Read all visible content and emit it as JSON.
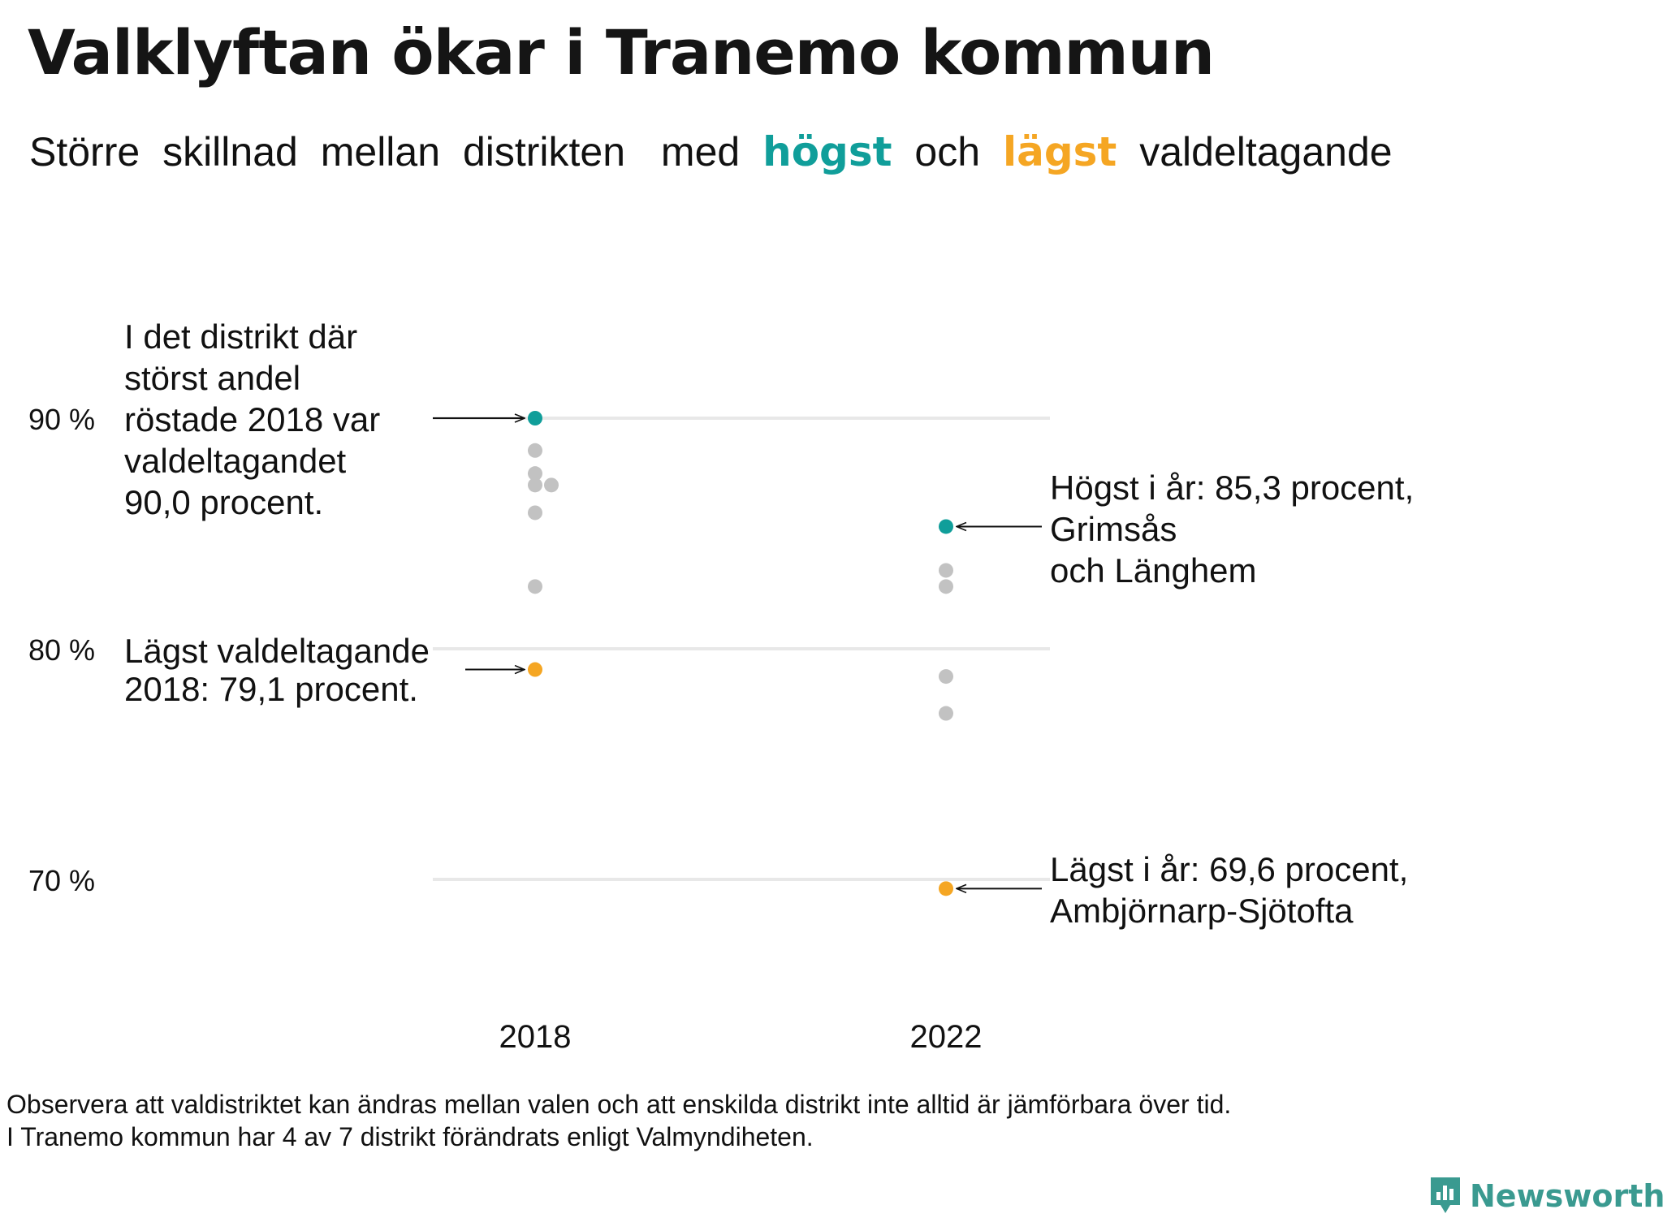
{
  "title": "Valklyftan ökar i Tranemo kommun",
  "subtitle": {
    "w1": "Större",
    "w2": "skillnad",
    "w3": "mellan",
    "w4": "distrikten",
    "w5": "med",
    "hi": "högst",
    "w6": "och",
    "lo": "lägst",
    "w7": "valdeltagande"
  },
  "colors": {
    "high": "#109e9a",
    "low": "#f5a623",
    "other": "#c2c2c2",
    "grid": "#e8e8e8"
  },
  "annotations": {
    "top_2018": [
      "I det distrikt där",
      "störst andel",
      "röstade 2018 var",
      "valdeltagandet",
      "90,0 procent."
    ],
    "low_2018": [
      "Lägst valdeltagande",
      "2018: 79,1 procent."
    ],
    "high_2022": [
      "Högst i år: 85,3 procent,",
      "Grimsås",
      "och Länghem"
    ],
    "low_2022": [
      "Lägst i år: 69,6 procent,",
      "Ambjörnarp-Sjötofta"
    ]
  },
  "note": [
    "Observera att valdistriktet kan ändras mellan valen och att enskilda distrikt inte alltid är jämförbara över tid.",
    "I Tranemo kommun har 4 av 7 distrikt förändrats enligt Valmyndiheten."
  ],
  "brand": "Newsworthy",
  "chart_data": {
    "type": "scatter",
    "categories": [
      "2018",
      "2022"
    ],
    "y_ticks": [
      90,
      80,
      70
    ],
    "y_tick_labels": [
      "90 %",
      "80 %",
      "70 %"
    ],
    "ylim": [
      67,
      94
    ],
    "series": [
      {
        "values_2018": [
          90.0,
          88.6,
          87.6,
          87.1,
          87.1,
          85.9,
          82.7,
          79.1
        ],
        "values_2022": [
          85.3,
          83.4,
          82.7,
          78.8,
          77.2,
          69.6
        ]
      }
    ],
    "highlight": {
      "high_2018": 90.0,
      "low_2018": 79.1,
      "high_2022": 85.3,
      "low_2022": 69.6
    }
  }
}
